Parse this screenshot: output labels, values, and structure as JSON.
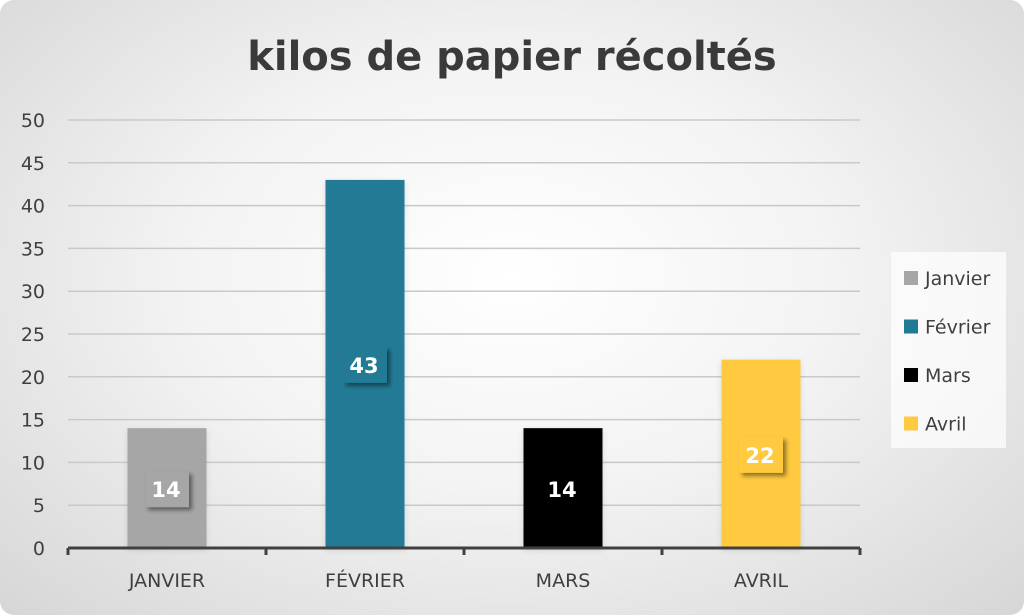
{
  "chart_data": {
    "type": "bar",
    "title": "kilos de papier récoltés",
    "categories": [
      "JANVIER",
      "FÉVRIER",
      "MARS",
      "AVRIL"
    ],
    "values": [
      14,
      43,
      14,
      22
    ],
    "series": [
      {
        "name": "Janvier",
        "values": [
          14,
          null,
          null,
          null
        ],
        "color": "#A6A6A6"
      },
      {
        "name": "Février",
        "values": [
          null,
          43,
          null,
          null
        ],
        "color": "#217A95"
      },
      {
        "name": "Mars",
        "values": [
          null,
          null,
          14,
          null
        ],
        "color": "#000000"
      },
      {
        "name": "Avril",
        "values": [
          null,
          null,
          null,
          22
        ],
        "color": "#FFC940"
      }
    ],
    "data_labels": [
      "14",
      "43",
      "14",
      "22"
    ],
    "ylim": [
      0,
      50
    ],
    "yticks": [
      "0",
      "5",
      "10",
      "15",
      "20",
      "25",
      "30",
      "35",
      "40",
      "45",
      "50"
    ],
    "xlabel": "",
    "ylabel": "",
    "grid": true,
    "legend": "right"
  }
}
